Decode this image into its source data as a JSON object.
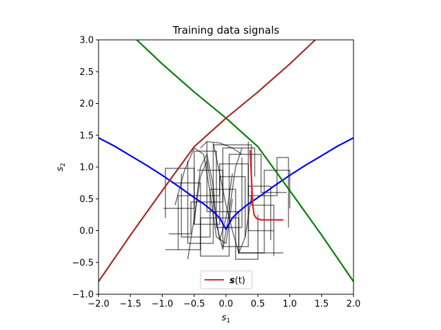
{
  "chart_data": {
    "type": "line",
    "title": "Training data signals",
    "xlabel": "s",
    "xlabel_sub": "1",
    "ylabel": "s",
    "ylabel_sub": "2",
    "xlim": [
      -2.0,
      2.0
    ],
    "ylim": [
      -1.0,
      3.0
    ],
    "xticks": [
      -2.0,
      -1.5,
      -1.0,
      -0.5,
      0.0,
      0.5,
      1.0,
      1.5,
      2.0
    ],
    "xtick_labels": [
      "−2.0",
      "−1.5",
      "−1.0",
      "−0.5",
      "0.0",
      "0.5",
      "1.0",
      "1.5",
      "2.0"
    ],
    "yticks": [
      -1.0,
      -0.5,
      0.0,
      0.5,
      1.0,
      1.5,
      2.0,
      2.5,
      3.0
    ],
    "ytick_labels": [
      "−1.0",
      "−0.5",
      "0.0",
      "0.5",
      "1.0",
      "1.5",
      "2.0",
      "2.5",
      "3.0"
    ],
    "grid": false,
    "legend": {
      "placement": "lower-center",
      "label_bold": "s",
      "label_rest": "(t)",
      "color": "#d62728"
    },
    "series": [
      {
        "color": "#0000ff",
        "points": [
          [
            -2.0,
            1.46
          ],
          [
            -1.75,
            1.33
          ],
          [
            -1.5,
            1.18
          ],
          [
            -1.25,
            1.03
          ],
          [
            -1.0,
            0.87
          ],
          [
            -0.75,
            0.7
          ],
          [
            -0.5,
            0.52
          ],
          [
            -0.35,
            0.42
          ],
          [
            -0.2,
            0.3
          ],
          [
            -0.1,
            0.2
          ],
          [
            0.0,
            0.02
          ],
          [
            0.1,
            0.2
          ],
          [
            0.2,
            0.3
          ],
          [
            0.35,
            0.42
          ],
          [
            0.5,
            0.52
          ],
          [
            0.75,
            0.7
          ],
          [
            1.0,
            0.87
          ],
          [
            1.25,
            1.03
          ],
          [
            1.5,
            1.18
          ],
          [
            1.75,
            1.33
          ],
          [
            2.0,
            1.46
          ]
        ]
      },
      {
        "color": "#008000",
        "points": [
          [
            -1.4,
            3.0
          ],
          [
            -1.0,
            2.62
          ],
          [
            -0.5,
            2.18
          ],
          [
            0.0,
            1.77
          ],
          [
            0.5,
            1.32
          ],
          [
            1.0,
            0.63
          ],
          [
            1.5,
            -0.07
          ],
          [
            2.0,
            -0.8
          ]
        ]
      },
      {
        "color": "#a52a2a",
        "points": [
          [
            -2.0,
            -0.8
          ],
          [
            -1.5,
            -0.07
          ],
          [
            -1.0,
            0.63
          ],
          [
            -0.5,
            1.32
          ],
          [
            0.0,
            1.77
          ],
          [
            0.5,
            2.18
          ],
          [
            1.0,
            2.62
          ],
          [
            1.4,
            3.0
          ]
        ]
      },
      {
        "name": "s(t)",
        "color": "#d62728",
        "points": [
          [
            0.38,
            1.27
          ],
          [
            0.4,
            0.8
          ],
          [
            0.42,
            0.4
          ],
          [
            0.44,
            0.25
          ],
          [
            0.48,
            0.19
          ],
          [
            0.55,
            0.17
          ],
          [
            0.7,
            0.17
          ],
          [
            0.9,
            0.17
          ]
        ]
      }
    ],
    "training_signals": [
      [
        [
          -0.95,
          0.2
        ],
        [
          -0.95,
          0.98
        ],
        [
          -0.5,
          0.98
        ],
        [
          -0.5,
          0.1
        ],
        [
          -0.1,
          0.1
        ],
        [
          -0.1,
          0.85
        ],
        [
          0.3,
          0.85
        ],
        [
          0.3,
          -0.1
        ]
      ],
      [
        [
          -0.6,
          1.1
        ],
        [
          -0.6,
          -0.2
        ],
        [
          -0.2,
          -0.2
        ],
        [
          -0.2,
          1.35
        ],
        [
          0.4,
          1.35
        ],
        [
          0.4,
          0.4
        ],
        [
          0.75,
          0.4
        ],
        [
          0.75,
          -0.4
        ]
      ],
      [
        [
          -0.85,
          0.75
        ],
        [
          -0.4,
          0.75
        ],
        [
          -0.4,
          -0.4
        ],
        [
          0.05,
          -0.4
        ],
        [
          0.05,
          1.2
        ],
        [
          0.55,
          1.2
        ],
        [
          0.55,
          0.6
        ],
        [
          0.95,
          0.6
        ]
      ],
      [
        [
          -0.3,
          1.4
        ],
        [
          -0.3,
          0.3
        ],
        [
          0.2,
          0.3
        ],
        [
          0.2,
          -0.35
        ],
        [
          0.6,
          -0.35
        ],
        [
          0.6,
          0.95
        ],
        [
          1.0,
          0.95
        ],
        [
          1.0,
          0.35
        ]
      ],
      [
        [
          -0.75,
          -0.3
        ],
        [
          -0.75,
          0.55
        ],
        [
          -0.1,
          0.55
        ],
        [
          -0.1,
          1.05
        ],
        [
          0.35,
          1.05
        ],
        [
          0.35,
          0.0
        ],
        [
          0.75,
          0.0
        ]
      ],
      [
        [
          -0.45,
          0.95
        ],
        [
          -0.05,
          0.95
        ],
        [
          -0.05,
          -0.25
        ],
        [
          0.35,
          -0.25
        ],
        [
          0.35,
          0.7
        ],
        [
          0.7,
          0.7
        ],
        [
          0.7,
          -0.15
        ]
      ],
      [
        [
          -0.98,
          0.35
        ],
        [
          -0.5,
          0.35
        ],
        [
          -0.5,
          1.25
        ],
        [
          -0.15,
          1.25
        ],
        [
          -0.15,
          0.05
        ],
        [
          0.25,
          0.05
        ],
        [
          0.25,
          1.15
        ]
      ],
      [
        [
          -0.7,
          0.9
        ],
        [
          -0.7,
          -0.1
        ],
        [
          -0.25,
          -0.1
        ],
        [
          -0.25,
          0.65
        ],
        [
          0.15,
          0.65
        ],
        [
          0.15,
          -0.45
        ],
        [
          0.5,
          -0.45
        ],
        [
          0.5,
          0.25
        ]
      ],
      [
        [
          0.35,
          1.4
        ],
        [
          0.35,
          0.55
        ],
        [
          0.8,
          0.55
        ],
        [
          0.8,
          1.15
        ],
        [
          0.98,
          1.15
        ],
        [
          0.98,
          0.05
        ]
      ],
      [
        [
          -0.9,
          -0.05
        ],
        [
          -0.55,
          -0.05
        ],
        [
          -0.55,
          0.45
        ],
        [
          -0.05,
          0.45
        ],
        [
          -0.05,
          1.3
        ],
        [
          0.45,
          1.3
        ],
        [
          0.45,
          0.85
        ]
      ],
      [
        [
          -0.5,
          0.1
        ],
        [
          -0.45,
          0.6
        ],
        [
          -0.4,
          1.0
        ],
        [
          -0.3,
          1.2
        ],
        [
          -0.2,
          0.7
        ],
        [
          -0.15,
          0.1
        ],
        [
          -0.05,
          -0.3
        ],
        [
          0.05,
          0.3
        ],
        [
          0.15,
          1.0
        ],
        [
          0.25,
          1.3
        ]
      ],
      [
        [
          -0.8,
          0.4
        ],
        [
          -0.65,
          0.95
        ],
        [
          -0.5,
          1.3
        ],
        [
          -0.35,
          1.2
        ],
        [
          -0.25,
          0.6
        ],
        [
          -0.15,
          -0.1
        ],
        [
          0.0,
          -0.2
        ],
        [
          0.1,
          0.5
        ]
      ],
      [
        [
          -0.2,
          1.38
        ],
        [
          -0.1,
          0.9
        ],
        [
          0.0,
          0.4
        ],
        [
          0.1,
          0.0
        ],
        [
          0.2,
          -0.35
        ],
        [
          0.3,
          -0.1
        ],
        [
          0.4,
          0.55
        ]
      ],
      [
        [
          -0.6,
          -0.45
        ],
        [
          -0.5,
          0.2
        ],
        [
          -0.4,
          0.85
        ],
        [
          -0.3,
          1.1
        ],
        [
          -0.2,
          0.5
        ],
        [
          -0.1,
          -0.15
        ],
        [
          0.0,
          0.2
        ],
        [
          0.1,
          0.9
        ]
      ],
      [
        [
          -0.4,
          1.3
        ],
        [
          -0.3,
          1.4
        ],
        [
          -0.1,
          1.38
        ],
        [
          0.1,
          1.3
        ],
        [
          0.25,
          1.2
        ]
      ],
      [
        [
          -0.95,
          -0.3
        ],
        [
          -0.4,
          -0.3
        ],
        [
          -0.4,
          0.2
        ],
        [
          0.2,
          0.2
        ],
        [
          0.2,
          -0.35
        ],
        [
          0.9,
          -0.35
        ]
      ]
    ]
  }
}
